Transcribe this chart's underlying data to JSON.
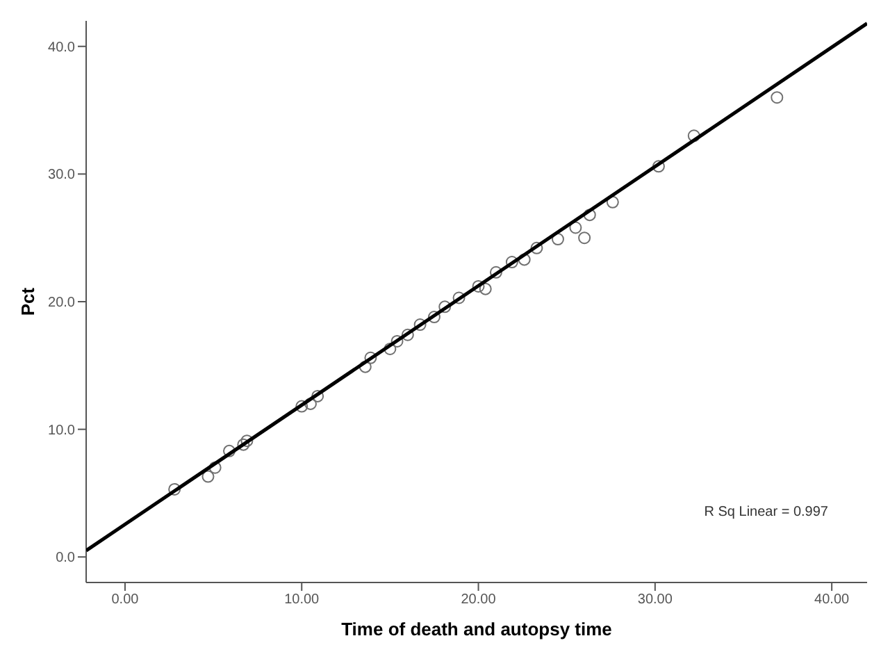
{
  "chart_data": {
    "type": "scatter",
    "xlabel": "Time of death and autopsy time",
    "ylabel": "Pct",
    "xlim": [
      -2.2,
      42
    ],
    "ylim": [
      -2,
      42
    ],
    "xticks": [
      {
        "value": 0,
        "label": "0.00"
      },
      {
        "value": 10,
        "label": "10.00"
      },
      {
        "value": 20,
        "label": "20.00"
      },
      {
        "value": 30,
        "label": "30.00"
      },
      {
        "value": 40,
        "label": "40.00"
      }
    ],
    "yticks": [
      {
        "value": 0,
        "label": "0.0"
      },
      {
        "value": 10,
        "label": "10.0"
      },
      {
        "value": 20,
        "label": "20.0"
      },
      {
        "value": 30,
        "label": "30.0"
      },
      {
        "value": 40,
        "label": "40.0"
      }
    ],
    "annotations": [
      "R Sq Linear = 0.997"
    ],
    "series": [
      {
        "marker": "circle",
        "color": "#707070",
        "x": [
          2.8,
          4.7,
          5.1,
          5.9,
          6.7,
          6.9,
          10.0,
          10.5,
          10.9,
          13.6,
          13.9,
          15.0,
          15.4,
          16.0,
          16.7,
          17.5,
          18.1,
          18.9,
          20.0,
          20.4,
          21.0,
          21.9,
          22.6,
          23.3,
          24.5,
          25.5,
          26.0,
          26.3,
          27.6,
          30.2,
          32.2,
          36.9
        ],
        "values": [
          5.3,
          6.3,
          7.0,
          8.3,
          8.8,
          9.1,
          11.8,
          12.0,
          12.6,
          14.9,
          15.6,
          16.3,
          16.9,
          17.4,
          18.2,
          18.8,
          19.6,
          20.3,
          21.2,
          21.0,
          22.3,
          23.1,
          23.3,
          24.2,
          24.9,
          25.8,
          25.0,
          26.8,
          27.8,
          30.6,
          33.0,
          36.0
        ]
      },
      {
        "type": "line",
        "marker": "none",
        "color": "#000000",
        "x": [
          -2.2,
          42
        ],
        "values": [
          0.5,
          41.8
        ]
      }
    ]
  }
}
